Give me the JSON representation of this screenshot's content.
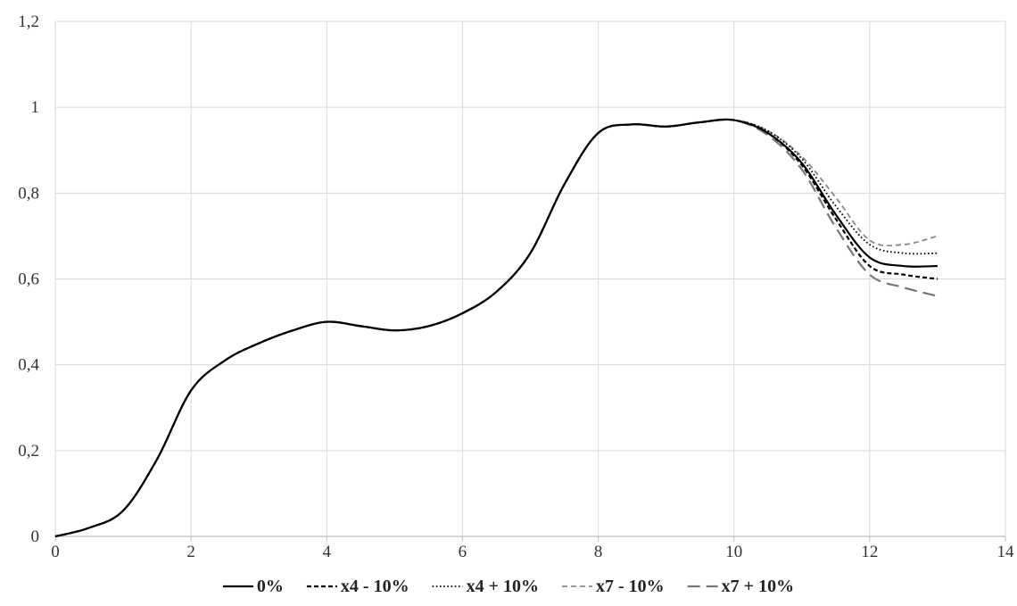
{
  "chart_data": {
    "type": "line",
    "title": "",
    "xlabel": "",
    "ylabel": "",
    "xlim": [
      0,
      14
    ],
    "ylim": [
      0,
      1.2
    ],
    "x_ticks": [
      0,
      2,
      4,
      6,
      8,
      10,
      12,
      14
    ],
    "x_tick_labels": [
      "0",
      "2",
      "4",
      "6",
      "8",
      "10",
      "12",
      "14"
    ],
    "y_ticks": [
      0,
      0.2,
      0.4,
      0.6,
      0.8,
      1.0,
      1.2
    ],
    "y_tick_labels": [
      "0",
      "0,2",
      "0,4",
      "0,6",
      "0,8",
      "1",
      "1,2"
    ],
    "grid": true,
    "legend_position": "bottom",
    "x": [
      0,
      0.5,
      1,
      1.5,
      2,
      2.5,
      3,
      3.5,
      4,
      4.5,
      5,
      5.5,
      6,
      6.5,
      7,
      7.5,
      8,
      8.5,
      9,
      9.5,
      10,
      10.5,
      11,
      11.5,
      12,
      12.5,
      13
    ],
    "series": [
      {
        "name": "0%",
        "color": "#000000",
        "dash": "solid",
        "values": [
          0,
          0.02,
          0.06,
          0.18,
          0.34,
          0.41,
          0.45,
          0.48,
          0.5,
          0.49,
          0.48,
          0.49,
          0.52,
          0.57,
          0.66,
          0.82,
          0.94,
          0.96,
          0.955,
          0.965,
          0.97,
          0.94,
          0.87,
          0.75,
          0.65,
          0.63,
          0.63
        ]
      },
      {
        "name": "x4 - 10%",
        "color": "#000000",
        "dash": "short-dash",
        "values": [
          0,
          0.02,
          0.06,
          0.18,
          0.34,
          0.41,
          0.45,
          0.48,
          0.5,
          0.49,
          0.48,
          0.49,
          0.52,
          0.57,
          0.66,
          0.82,
          0.94,
          0.96,
          0.955,
          0.965,
          0.97,
          0.94,
          0.865,
          0.74,
          0.63,
          0.61,
          0.6
        ]
      },
      {
        "name": "x4 + 10%",
        "color": "#000000",
        "dash": "dotted",
        "values": [
          0,
          0.02,
          0.06,
          0.18,
          0.34,
          0.41,
          0.45,
          0.48,
          0.5,
          0.49,
          0.48,
          0.49,
          0.52,
          0.57,
          0.66,
          0.82,
          0.94,
          0.96,
          0.955,
          0.965,
          0.97,
          0.945,
          0.88,
          0.77,
          0.68,
          0.66,
          0.66
        ]
      },
      {
        "name": "x7 - 10%",
        "color": "#888888",
        "dash": "dashed",
        "values": [
          0,
          0.02,
          0.06,
          0.18,
          0.34,
          0.41,
          0.45,
          0.48,
          0.5,
          0.49,
          0.48,
          0.49,
          0.52,
          0.57,
          0.66,
          0.82,
          0.94,
          0.96,
          0.955,
          0.965,
          0.97,
          0.945,
          0.885,
          0.79,
          0.69,
          0.68,
          0.7
        ]
      },
      {
        "name": "x7 + 10%",
        "color": "#777777",
        "dash": "long-dash",
        "values": [
          0,
          0.02,
          0.06,
          0.18,
          0.34,
          0.41,
          0.45,
          0.48,
          0.5,
          0.49,
          0.48,
          0.49,
          0.52,
          0.57,
          0.66,
          0.82,
          0.94,
          0.96,
          0.955,
          0.965,
          0.97,
          0.935,
          0.855,
          0.72,
          0.61,
          0.58,
          0.56
        ]
      }
    ]
  }
}
